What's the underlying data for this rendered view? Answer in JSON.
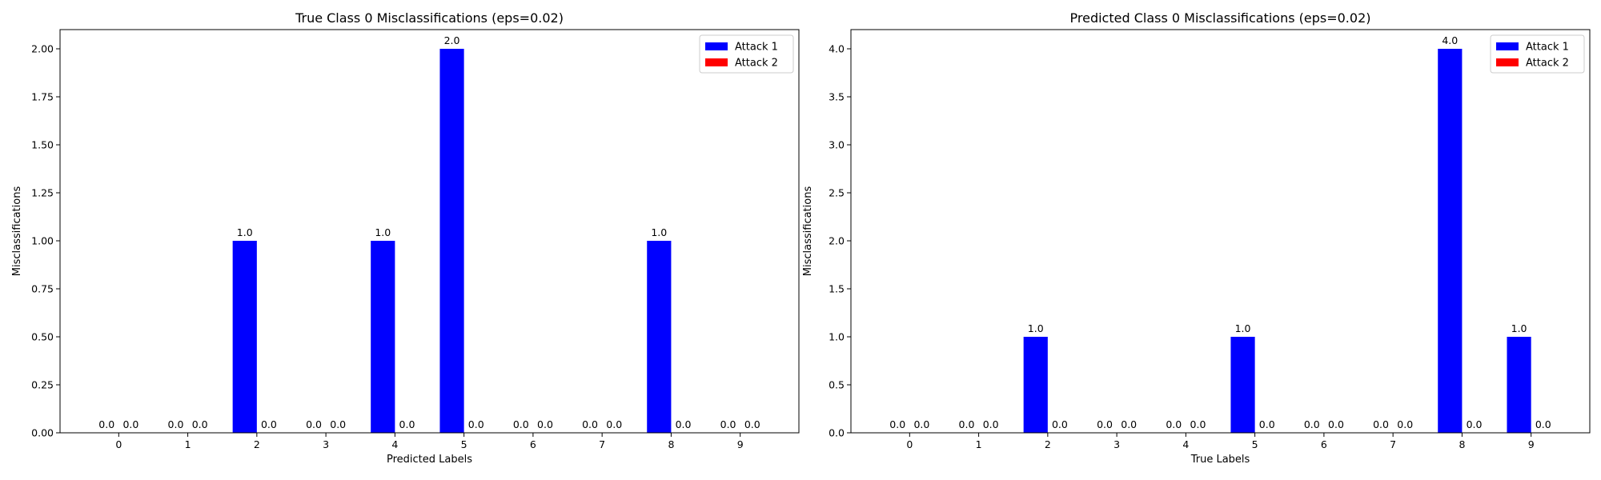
{
  "colors": {
    "attack_1": "#0000ff",
    "attack_2": "#ff0000",
    "axes": "#000000",
    "background": "#ffffff"
  },
  "chart_data": [
    {
      "type": "bar",
      "title": "True Class 0 Misclassifications (eps=0.02)",
      "xlabel": "Predicted Labels",
      "ylabel": "Misclassifications",
      "categories": [
        "0",
        "1",
        "2",
        "3",
        "4",
        "5",
        "6",
        "7",
        "8",
        "9"
      ],
      "series": [
        {
          "name": "Attack 1",
          "color": "#0000ff",
          "values": [
            0,
            0,
            1,
            0,
            1,
            2,
            0,
            0,
            1,
            0
          ]
        },
        {
          "name": "Attack 2",
          "color": "#ff0000",
          "values": [
            0,
            0,
            0,
            0,
            0,
            0,
            0,
            0,
            0,
            0
          ]
        }
      ],
      "value_labels": {
        "Attack 1": [
          "0.0",
          "0.0",
          "1.0",
          "0.0",
          "1.0",
          "2.0",
          "0.0",
          "0.0",
          "1.0",
          "0.0"
        ],
        "Attack 2": [
          "0.0",
          "0.0",
          "0.0",
          "0.0",
          "0.0",
          "0.0",
          "0.0",
          "0.0",
          "0.0",
          "0.0"
        ]
      },
      "ylim": [
        0,
        2.1
      ],
      "yticks": [
        "0.00",
        "0.25",
        "0.50",
        "0.75",
        "1.00",
        "1.25",
        "1.50",
        "1.75",
        "2.00"
      ],
      "ytick_values": [
        0,
        0.25,
        0.5,
        0.75,
        1.0,
        1.25,
        1.5,
        1.75,
        2.0
      ],
      "grid": false,
      "legend_position": "top-right"
    },
    {
      "type": "bar",
      "title": "Predicted Class 0 Misclassifications (eps=0.02)",
      "xlabel": "True Labels",
      "ylabel": "Misclassifications",
      "categories": [
        "0",
        "1",
        "2",
        "3",
        "4",
        "5",
        "6",
        "7",
        "8",
        "9"
      ],
      "series": [
        {
          "name": "Attack 1",
          "color": "#0000ff",
          "values": [
            0,
            0,
            1,
            0,
            0,
            1,
            0,
            0,
            4,
            1
          ]
        },
        {
          "name": "Attack 2",
          "color": "#ff0000",
          "values": [
            0,
            0,
            0,
            0,
            0,
            0,
            0,
            0,
            0,
            0
          ]
        }
      ],
      "value_labels": {
        "Attack 1": [
          "0.0",
          "0.0",
          "1.0",
          "0.0",
          "0.0",
          "1.0",
          "0.0",
          "0.0",
          "4.0",
          "1.0"
        ],
        "Attack 2": [
          "0.0",
          "0.0",
          "0.0",
          "0.0",
          "0.0",
          "0.0",
          "0.0",
          "0.0",
          "0.0",
          "0.0"
        ]
      },
      "ylim": [
        0,
        4.2
      ],
      "yticks": [
        "0.0",
        "0.5",
        "1.0",
        "1.5",
        "2.0",
        "2.5",
        "3.0",
        "3.5",
        "4.0"
      ],
      "ytick_values": [
        0,
        0.5,
        1.0,
        1.5,
        2.0,
        2.5,
        3.0,
        3.5,
        4.0
      ],
      "grid": false,
      "legend_position": "top-right"
    }
  ]
}
